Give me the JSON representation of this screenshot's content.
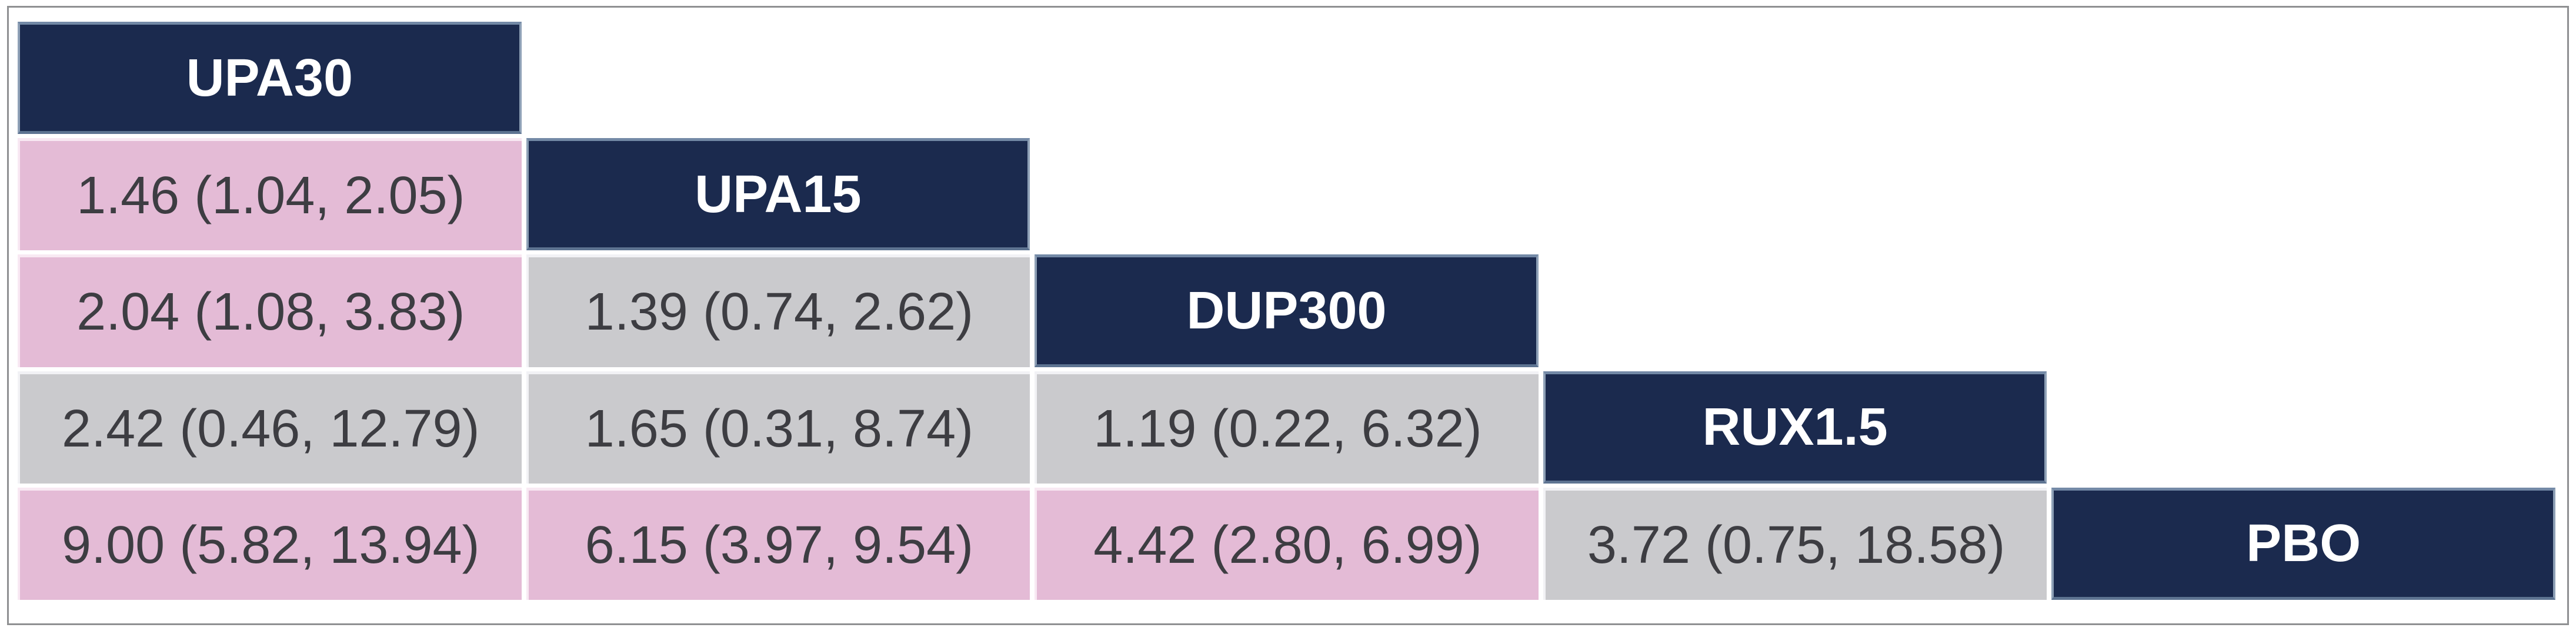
{
  "figure": {
    "kind": "network-meta-analysis-league-table",
    "frame_border_color": "#8f9092",
    "background_color": "#ffffff"
  },
  "colors": {
    "header_fill": "#1b2a4e",
    "header_text": "#ffffff",
    "significant_fill_pink": "#e4bbd6",
    "nonsignificant_fill_gray": "#cacacd",
    "data_text": "#3d3d42"
  },
  "table": {
    "treatments": [
      "UPA30",
      "UPA15",
      "DUP300",
      "RUX1.5",
      "PBO"
    ],
    "rows": [
      {
        "cells": [
          {
            "kind": "header",
            "text": "UPA30"
          }
        ]
      },
      {
        "cells": [
          {
            "kind": "data",
            "tone": "pink",
            "text": "1.46 (1.04, 2.05)"
          },
          {
            "kind": "header",
            "text": "UPA15"
          }
        ]
      },
      {
        "cells": [
          {
            "kind": "data",
            "tone": "pink",
            "text": "2.04 (1.08, 3.83)"
          },
          {
            "kind": "data",
            "tone": "gray",
            "text": "1.39 (0.74, 2.62)"
          },
          {
            "kind": "header",
            "text": "DUP300"
          }
        ]
      },
      {
        "cells": [
          {
            "kind": "data",
            "tone": "gray",
            "text": "2.42 (0.46, 12.79)"
          },
          {
            "kind": "data",
            "tone": "gray",
            "text": "1.65 (0.31, 8.74)"
          },
          {
            "kind": "data",
            "tone": "gray",
            "text": "1.19 (0.22, 6.32)"
          },
          {
            "kind": "header",
            "text": "RUX1.5"
          }
        ]
      },
      {
        "cells": [
          {
            "kind": "data",
            "tone": "pink",
            "text": "9.00 (5.82, 13.94)"
          },
          {
            "kind": "data",
            "tone": "pink",
            "text": "6.15 (3.97, 9.54)"
          },
          {
            "kind": "data",
            "tone": "pink",
            "text": "4.42 (2.80, 6.99)"
          },
          {
            "kind": "data",
            "tone": "gray",
            "text": "3.72 (0.75, 18.58)"
          },
          {
            "kind": "header",
            "text": "PBO"
          }
        ]
      }
    ]
  },
  "chart_data": {
    "type": "table",
    "subtype": "league-table-lower-triangle",
    "diagonal_labels": [
      "UPA30",
      "UPA15",
      "DUP300",
      "RUX1.5",
      "PBO"
    ],
    "cell_format": "estimate (ci_lower, ci_upper)",
    "comparisons": [
      {
        "row": "UPA15",
        "col": "UPA30",
        "estimate": 1.46,
        "ci_lower": 1.04,
        "ci_upper": 2.05,
        "highlight": "pink",
        "significant": true
      },
      {
        "row": "DUP300",
        "col": "UPA30",
        "estimate": 2.04,
        "ci_lower": 1.08,
        "ci_upper": 3.83,
        "highlight": "pink",
        "significant": true
      },
      {
        "row": "DUP300",
        "col": "UPA15",
        "estimate": 1.39,
        "ci_lower": 0.74,
        "ci_upper": 2.62,
        "highlight": "gray",
        "significant": false
      },
      {
        "row": "RUX1.5",
        "col": "UPA30",
        "estimate": 2.42,
        "ci_lower": 0.46,
        "ci_upper": 12.79,
        "highlight": "gray",
        "significant": false
      },
      {
        "row": "RUX1.5",
        "col": "UPA15",
        "estimate": 1.65,
        "ci_lower": 0.31,
        "ci_upper": 8.74,
        "highlight": "gray",
        "significant": false
      },
      {
        "row": "RUX1.5",
        "col": "DUP300",
        "estimate": 1.19,
        "ci_lower": 0.22,
        "ci_upper": 6.32,
        "highlight": "gray",
        "significant": false
      },
      {
        "row": "PBO",
        "col": "UPA30",
        "estimate": 9.0,
        "ci_lower": 5.82,
        "ci_upper": 13.94,
        "highlight": "pink",
        "significant": true
      },
      {
        "row": "PBO",
        "col": "UPA15",
        "estimate": 6.15,
        "ci_lower": 3.97,
        "ci_upper": 9.54,
        "highlight": "pink",
        "significant": true
      },
      {
        "row": "PBO",
        "col": "DUP300",
        "estimate": 4.42,
        "ci_lower": 2.8,
        "ci_upper": 6.99,
        "highlight": "pink",
        "significant": true
      },
      {
        "row": "PBO",
        "col": "RUX1.5",
        "estimate": 3.72,
        "ci_lower": 0.75,
        "ci_upper": 18.58,
        "highlight": "gray",
        "significant": false
      }
    ]
  }
}
